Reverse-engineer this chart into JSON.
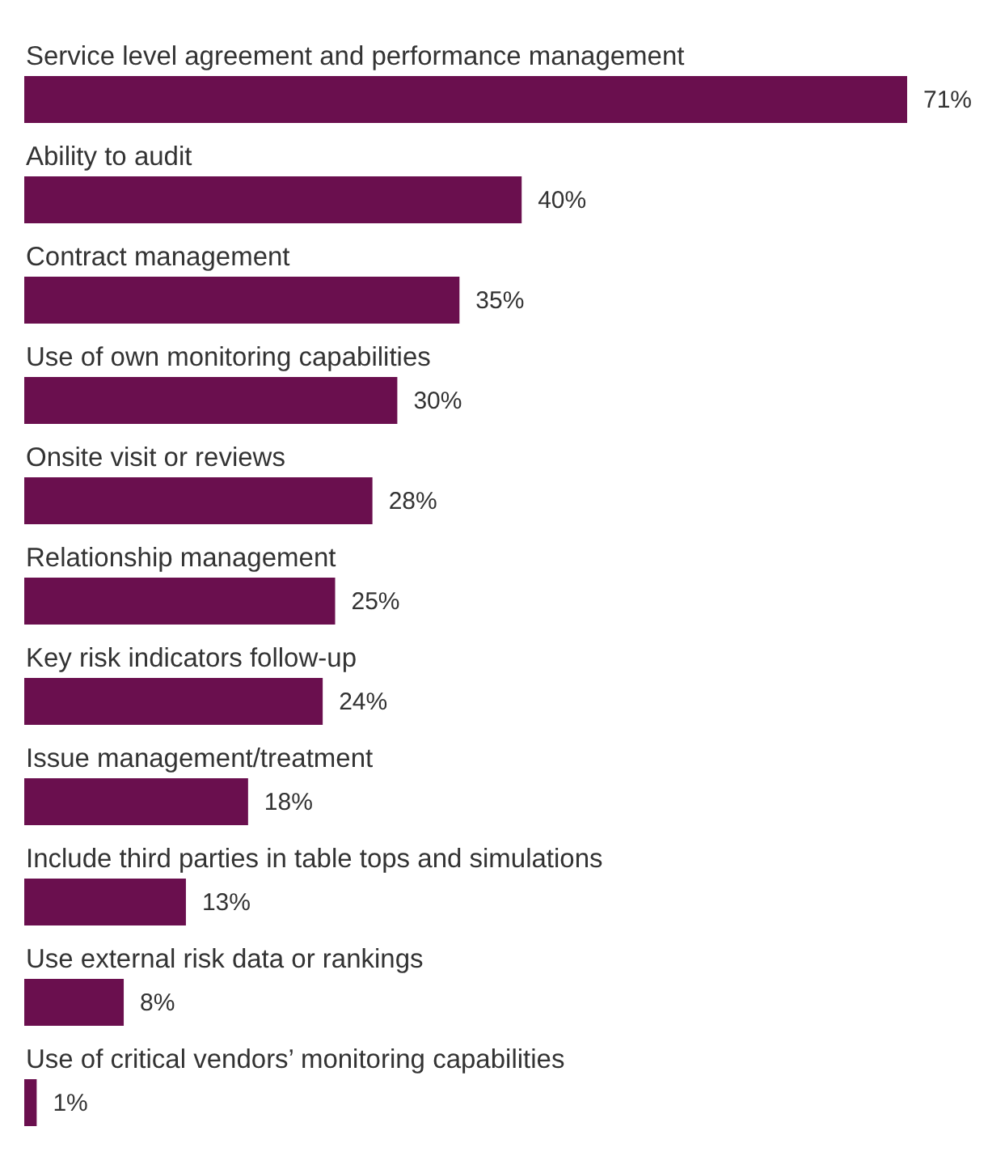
{
  "chart_data": {
    "type": "bar",
    "orientation": "horizontal",
    "categories": [
      "Service level agreement and performance management",
      "Ability to audit",
      "Contract management",
      "Use of own monitoring capabilities",
      "Onsite visit or reviews",
      "Relationship management",
      "Key risk indicators follow-up",
      "Issue management/treatment",
      "Include third parties in table tops and simulations",
      "Use external risk data or rankings",
      "Use of critical vendors’ monitoring capabilities"
    ],
    "values": [
      71,
      40,
      35,
      30,
      28,
      25,
      24,
      18,
      13,
      8,
      1
    ],
    "value_labels": [
      "71%",
      "40%",
      "35%",
      "30%",
      "28%",
      "25%",
      "24%",
      "18%",
      "13%",
      "8%",
      "1%"
    ],
    "color": "#6a0f4e"
  }
}
